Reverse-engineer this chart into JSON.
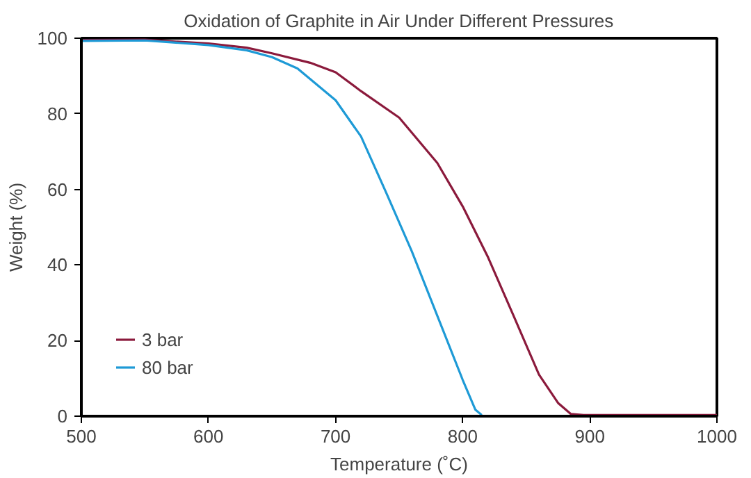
{
  "chart_data": {
    "type": "line",
    "title": "Oxidation of Graphite in Air Under Different Pressures",
    "xlabel": "Temperature (˚C)",
    "ylabel": "Weight (%)",
    "xlim": [
      500,
      1000
    ],
    "ylim": [
      0,
      100
    ],
    "xticks": [
      500,
      600,
      700,
      800,
      900,
      1000
    ],
    "yticks": [
      0,
      20,
      40,
      60,
      80,
      100
    ],
    "grid": false,
    "legend": "bottom left",
    "marker": "none",
    "line_style": "solid",
    "series": [
      {
        "name": "3 bar",
        "color": "#8b1a3c",
        "x": [
          500,
          550,
          600,
          630,
          650,
          680,
          700,
          720,
          750,
          780,
          800,
          820,
          840,
          860,
          875,
          885,
          895,
          1000
        ],
        "values": [
          99.5,
          99.6,
          98.6,
          97.5,
          96,
          93.5,
          91,
          86,
          79,
          67,
          55.5,
          42,
          26.6,
          11,
          3.5,
          0.6,
          0.3,
          0.3
        ]
      },
      {
        "name": "80 bar",
        "color": "#1e9ad6",
        "x": [
          500,
          550,
          600,
          630,
          650,
          670,
          700,
          720,
          740,
          760,
          780,
          800,
          810,
          815
        ],
        "values": [
          99.3,
          99.4,
          98.2,
          96.8,
          95,
          92,
          83.6,
          74,
          59,
          43.6,
          26.6,
          9.6,
          1.7,
          0.3
        ]
      }
    ]
  }
}
